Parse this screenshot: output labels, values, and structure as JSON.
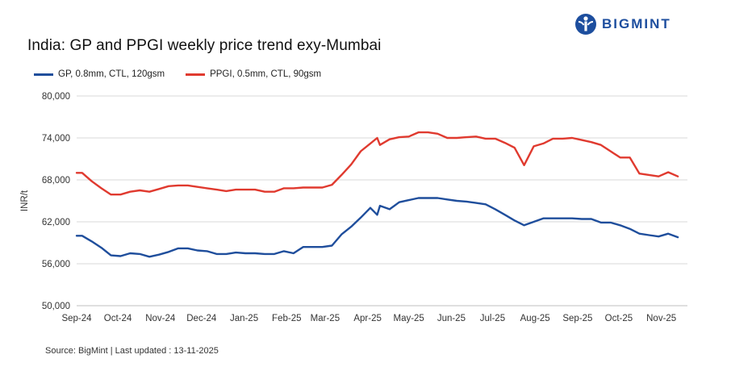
{
  "brand": {
    "name": "BIGMINT",
    "color": "#1d4e9e"
  },
  "chart_data": {
    "type": "line",
    "title": "India: GP and PPGI weekly price trend exy-Mumbai",
    "ylabel": "INR/t",
    "xlabel": "",
    "ylim": [
      50000,
      80000
    ],
    "yticks": [
      50000,
      56000,
      62000,
      68000,
      74000,
      80000
    ],
    "ytick_labels": [
      "50,000",
      "56,000",
      "62,000",
      "68,000",
      "74,000",
      "80,000"
    ],
    "x_start": "2024-09-01",
    "x_end": "2025-11-20",
    "xticks": [
      "2024-09-01",
      "2024-10-01",
      "2024-11-01",
      "2024-12-01",
      "2025-01-01",
      "2025-02-01",
      "2025-03-01",
      "2025-04-01",
      "2025-05-01",
      "2025-06-01",
      "2025-07-01",
      "2025-08-01",
      "2025-09-01",
      "2025-10-01",
      "2025-11-01"
    ],
    "xtick_labels": [
      "Sep-24",
      "Oct-24",
      "Nov-24",
      "Dec-24",
      "Jan-25",
      "Feb-25",
      "Mar-25",
      "Apr-25",
      "May-25",
      "Jun-25",
      "Jul-25",
      "Aug-25",
      "Sep-25",
      "Oct-25",
      "Nov-25"
    ],
    "grid": true,
    "legend": "top-left",
    "series": [
      {
        "name": "GP, 0.8mm, CTL, 120gsm",
        "color": "#1f4e9c",
        "points": [
          [
            "2024-09-01",
            60000
          ],
          [
            "2024-09-05",
            60000
          ],
          [
            "2024-09-12",
            59200
          ],
          [
            "2024-09-19",
            58300
          ],
          [
            "2024-09-26",
            57200
          ],
          [
            "2024-10-03",
            57100
          ],
          [
            "2024-10-10",
            57500
          ],
          [
            "2024-10-17",
            57400
          ],
          [
            "2024-10-24",
            57000
          ],
          [
            "2024-10-31",
            57300
          ],
          [
            "2024-11-07",
            57700
          ],
          [
            "2024-11-14",
            58200
          ],
          [
            "2024-11-21",
            58200
          ],
          [
            "2024-11-28",
            57900
          ],
          [
            "2024-12-05",
            57800
          ],
          [
            "2024-12-12",
            57400
          ],
          [
            "2024-12-19",
            57400
          ],
          [
            "2024-12-26",
            57600
          ],
          [
            "2025-01-02",
            57500
          ],
          [
            "2025-01-09",
            57500
          ],
          [
            "2025-01-16",
            57400
          ],
          [
            "2025-01-23",
            57400
          ],
          [
            "2025-01-30",
            57800
          ],
          [
            "2025-02-06",
            57500
          ],
          [
            "2025-02-13",
            58400
          ],
          [
            "2025-02-20",
            58400
          ],
          [
            "2025-02-27",
            58400
          ],
          [
            "2025-03-06",
            58600
          ],
          [
            "2025-03-13",
            60200
          ],
          [
            "2025-03-20",
            61300
          ],
          [
            "2025-03-27",
            62600
          ],
          [
            "2025-04-03",
            64000
          ],
          [
            "2025-04-08",
            63000
          ],
          [
            "2025-04-10",
            64300
          ],
          [
            "2025-04-17",
            63800
          ],
          [
            "2025-04-24",
            64800
          ],
          [
            "2025-05-01",
            65100
          ],
          [
            "2025-05-08",
            65400
          ],
          [
            "2025-05-15",
            65400
          ],
          [
            "2025-05-22",
            65400
          ],
          [
            "2025-05-29",
            65200
          ],
          [
            "2025-06-05",
            65000
          ],
          [
            "2025-06-12",
            64900
          ],
          [
            "2025-06-19",
            64700
          ],
          [
            "2025-06-26",
            64500
          ],
          [
            "2025-07-03",
            63800
          ],
          [
            "2025-07-10",
            63000
          ],
          [
            "2025-07-17",
            62200
          ],
          [
            "2025-07-24",
            61500
          ],
          [
            "2025-07-31",
            62000
          ],
          [
            "2025-08-07",
            62500
          ],
          [
            "2025-08-14",
            62500
          ],
          [
            "2025-08-21",
            62500
          ],
          [
            "2025-08-28",
            62500
          ],
          [
            "2025-09-04",
            62400
          ],
          [
            "2025-09-11",
            62400
          ],
          [
            "2025-09-18",
            61900
          ],
          [
            "2025-09-25",
            61900
          ],
          [
            "2025-10-02",
            61500
          ],
          [
            "2025-10-09",
            61000
          ],
          [
            "2025-10-16",
            60300
          ],
          [
            "2025-10-23",
            60100
          ],
          [
            "2025-10-30",
            59900
          ],
          [
            "2025-11-06",
            60300
          ],
          [
            "2025-11-13",
            59800
          ]
        ]
      },
      {
        "name": "PPGI, 0.5mm, CTL, 90gsm",
        "color": "#e03a2f",
        "points": [
          [
            "2024-09-01",
            69000
          ],
          [
            "2024-09-05",
            69000
          ],
          [
            "2024-09-12",
            67800
          ],
          [
            "2024-09-19",
            66800
          ],
          [
            "2024-09-26",
            65900
          ],
          [
            "2024-10-03",
            65900
          ],
          [
            "2024-10-10",
            66300
          ],
          [
            "2024-10-17",
            66500
          ],
          [
            "2024-10-24",
            66300
          ],
          [
            "2024-10-31",
            66700
          ],
          [
            "2024-11-07",
            67100
          ],
          [
            "2024-11-14",
            67200
          ],
          [
            "2024-11-21",
            67200
          ],
          [
            "2024-11-28",
            67000
          ],
          [
            "2024-12-05",
            66800
          ],
          [
            "2024-12-12",
            66600
          ],
          [
            "2024-12-19",
            66400
          ],
          [
            "2024-12-26",
            66600
          ],
          [
            "2025-01-02",
            66600
          ],
          [
            "2025-01-09",
            66600
          ],
          [
            "2025-01-16",
            66300
          ],
          [
            "2025-01-23",
            66300
          ],
          [
            "2025-01-30",
            66800
          ],
          [
            "2025-02-06",
            66800
          ],
          [
            "2025-02-13",
            66900
          ],
          [
            "2025-02-20",
            66900
          ],
          [
            "2025-02-27",
            66900
          ],
          [
            "2025-03-06",
            67300
          ],
          [
            "2025-03-13",
            68700
          ],
          [
            "2025-03-20",
            70200
          ],
          [
            "2025-03-27",
            72100
          ],
          [
            "2025-04-03",
            73200
          ],
          [
            "2025-04-08",
            74000
          ],
          [
            "2025-04-10",
            73000
          ],
          [
            "2025-04-17",
            73800
          ],
          [
            "2025-04-24",
            74100
          ],
          [
            "2025-05-01",
            74200
          ],
          [
            "2025-05-08",
            74800
          ],
          [
            "2025-05-15",
            74800
          ],
          [
            "2025-05-22",
            74600
          ],
          [
            "2025-05-29",
            74000
          ],
          [
            "2025-06-05",
            74000
          ],
          [
            "2025-06-12",
            74100
          ],
          [
            "2025-06-19",
            74200
          ],
          [
            "2025-06-26",
            73900
          ],
          [
            "2025-07-03",
            73900
          ],
          [
            "2025-07-10",
            73300
          ],
          [
            "2025-07-17",
            72600
          ],
          [
            "2025-07-24",
            70100
          ],
          [
            "2025-07-31",
            72800
          ],
          [
            "2025-08-07",
            73200
          ],
          [
            "2025-08-14",
            73900
          ],
          [
            "2025-08-21",
            73900
          ],
          [
            "2025-08-28",
            74000
          ],
          [
            "2025-09-04",
            73700
          ],
          [
            "2025-09-11",
            73400
          ],
          [
            "2025-09-18",
            73000
          ],
          [
            "2025-09-25",
            72100
          ],
          [
            "2025-10-02",
            71200
          ],
          [
            "2025-10-09",
            71200
          ],
          [
            "2025-10-16",
            68900
          ],
          [
            "2025-10-23",
            68700
          ],
          [
            "2025-10-30",
            68500
          ],
          [
            "2025-11-06",
            69100
          ],
          [
            "2025-11-13",
            68500
          ]
        ]
      }
    ],
    "source": "Source: BigMint | Last updated : 13-11-2025"
  }
}
